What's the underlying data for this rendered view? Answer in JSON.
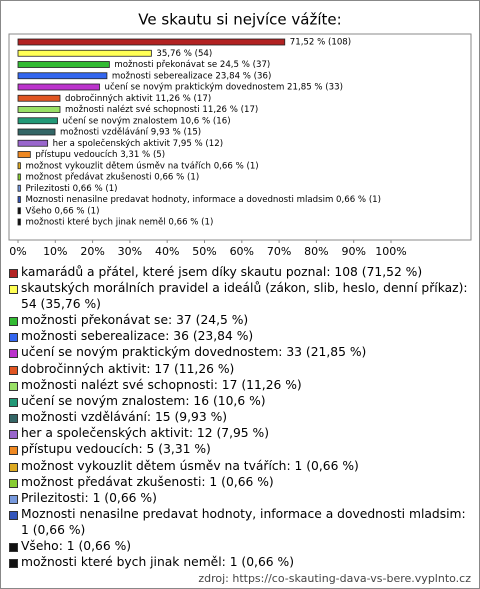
{
  "chart_data": {
    "type": "barh",
    "title": "Ve skautu si nejvíce vážíte:",
    "categories": [
      "kamarádů a přátel, které jsem díky skautu poznal: 108 (71,52 %)",
      "skautských morálních pravidel a ideálů (zákon, slib, heslo, denní příkaz): 54 (35,76 %)",
      "možnosti překonávat se: 37 (24,5 %)",
      "možnosti seberealizace: 36 (23,84 %)",
      "učení se novým praktickým dovednostem: 33 (21,85 %)",
      "dobročinných aktivit: 17 (11,26 %)",
      "možnosti nalézt své schopnosti: 17 (11,26 %)",
      "učení se novým znalostem: 16 (10,6 %)",
      "možnosti vzdělávání: 15 (9,93 %)",
      "her a společenských aktivit: 12 (7,95 %)",
      "přístupu vedoucích: 5 (3,31 %)",
      "možnost vykouzlit dětem úsměv na tvářích: 1 (0,66 %)",
      "možnost předávat zkušenosti: 1 (0,66 %)",
      "Prilezitosti: 1 (0,66 %)",
      "Moznosti nenasilne predavat hodnoty, informace a dovednosti mladsim: 1 (0,66 %)",
      "Všeho: 1 (0,66 %)",
      "možnosti které bych jinak neměl: 1 (0,66 %)"
    ],
    "values": [
      71.52,
      35.76,
      24.5,
      23.84,
      21.85,
      11.26,
      11.26,
      10.6,
      9.93,
      7.95,
      3.31,
      0.66,
      0.66,
      0.66,
      0.66,
      0.66,
      0.66
    ],
    "value_labels": [
      "71,52 % (108)",
      "35,76 % (54)",
      "možnosti překonávat se 24,5 % (37)",
      "možnosti seberealizace 23,84 % (36)",
      "učení se novým praktickým dovednostem 21,85 % (33)",
      "dobročinných aktivit 11,26 % (17)",
      "možnosti nalézt své schopnosti 11,26 % (17)",
      "učení se novým znalostem 10,6 % (16)",
      "možnosti vzdělávání 9,93 % (15)",
      "her a společenských aktivit 7,95 % (12)",
      "přístupu vedoucích 3,31 % (5)",
      "možnost vykouzlit dětem úsměv na tvářích 0,66 % (1)",
      "možnost předávat zkušenosti 0,66 % (1)",
      "Prilezitosti 0,66 % (1)",
      "Moznosti nenasilne predavat hodnoty, informace a dovednosti mladsim 0,66 % (1)",
      "Všeho 0,66 % (1)",
      "možnosti které bych jinak neměl 0,66 % (1)"
    ],
    "colors": [
      "#b22222",
      "#ffff55",
      "#33bb33",
      "#3366ee",
      "#bb33cc",
      "#e05522",
      "#99e066",
      "#229977",
      "#336666",
      "#9966cc",
      "#ee8822",
      "#ddaa22",
      "#88cc33",
      "#7799dd",
      "#3355bb",
      "#111111",
      "#111111"
    ],
    "xlim": [
      0,
      100
    ],
    "xticks": [
      {
        "value": 0,
        "label": "0%"
      },
      {
        "value": 10,
        "label": "10%"
      },
      {
        "value": 20,
        "label": "20%"
      },
      {
        "value": 30,
        "label": "30%"
      },
      {
        "value": 40,
        "label": "40%"
      },
      {
        "value": 50,
        "label": "50%"
      },
      {
        "value": 60,
        "label": "60%"
      },
      {
        "value": 70,
        "label": "70%"
      },
      {
        "value": 80,
        "label": "80%"
      },
      {
        "value": 90,
        "label": "90%"
      },
      {
        "value": 100,
        "label": "100%"
      }
    ],
    "source": "zdroj: https://co-skauting-dava-vs-bere.vyplnto.cz"
  }
}
